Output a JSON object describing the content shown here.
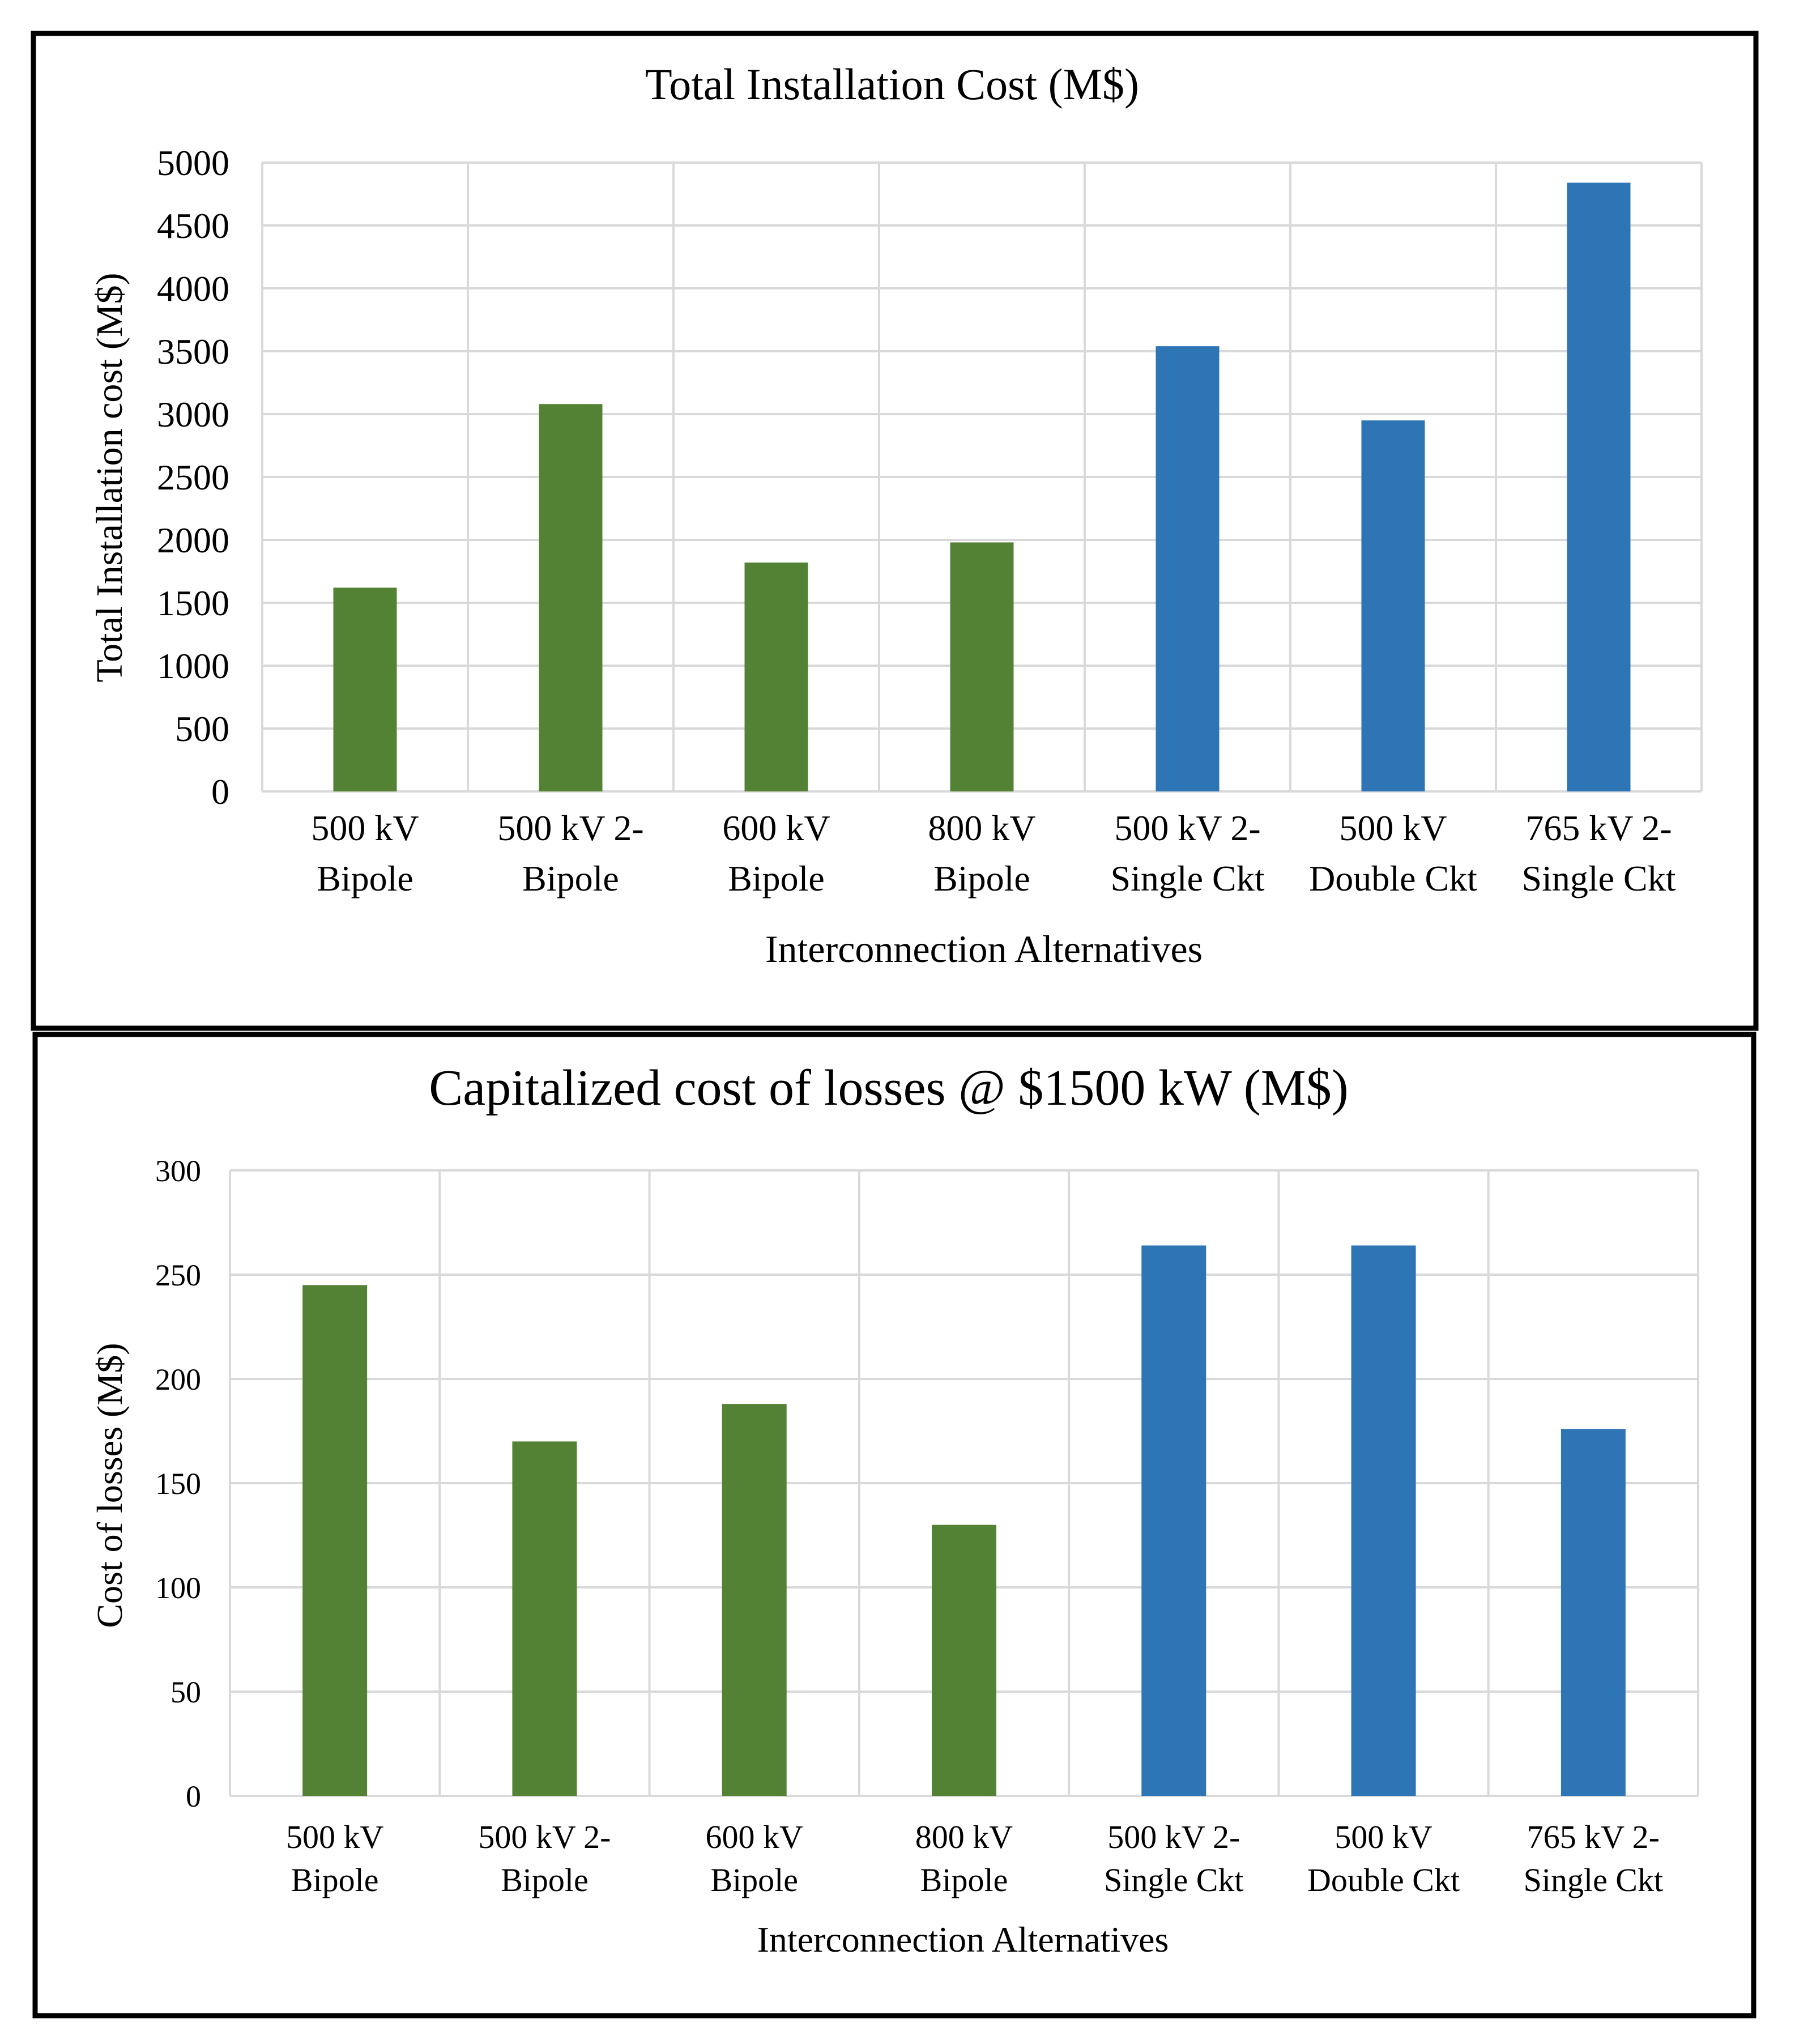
{
  "chart_data": [
    {
      "type": "bar",
      "title": "Total Installation Cost (M$)",
      "xlabel": "Interconnection Alternatives",
      "ylabel": "Total Installation cost (M$)",
      "ylim": [
        0,
        5000
      ],
      "yticks": [
        0,
        500,
        1000,
        1500,
        2000,
        2500,
        3000,
        3500,
        4000,
        4500,
        5000
      ],
      "grid": true,
      "categories": [
        [
          "500 kV",
          "Bipole"
        ],
        [
          "500 kV 2-",
          "Bipole"
        ],
        [
          "600 kV",
          "Bipole"
        ],
        [
          "800 kV",
          "Bipole"
        ],
        [
          "500 kV 2-",
          "Single Ckt"
        ],
        [
          "500 kV",
          "Double Ckt"
        ],
        [
          "765 kV 2-",
          "Single Ckt"
        ]
      ],
      "values": [
        1620,
        3080,
        1820,
        1980,
        3540,
        2950,
        4840
      ],
      "bar_colors": [
        "#548235",
        "#548235",
        "#548235",
        "#548235",
        "#2e75b6",
        "#2e75b6",
        "#2e75b6"
      ]
    },
    {
      "type": "bar",
      "title": "Capitalized cost of losses @ $1500 kW (M$)",
      "xlabel": "Interconnection Alternatives",
      "ylabel": "Cost of losses (M$)",
      "ylim": [
        0,
        300
      ],
      "yticks": [
        0,
        50,
        100,
        150,
        200,
        250,
        300
      ],
      "grid": true,
      "categories": [
        [
          "500 kV",
          "Bipole"
        ],
        [
          "500 kV 2-",
          "Bipole"
        ],
        [
          "600 kV",
          "Bipole"
        ],
        [
          "800 kV",
          "Bipole"
        ],
        [
          "500 kV 2-",
          "Single Ckt"
        ],
        [
          "500 kV",
          "Double Ckt"
        ],
        [
          "765 kV 2-",
          "Single Ckt"
        ]
      ],
      "values": [
        245,
        170,
        188,
        130,
        264,
        264,
        176
      ],
      "bar_colors": [
        "#548235",
        "#548235",
        "#548235",
        "#548235",
        "#2e75b6",
        "#2e75b6",
        "#2e75b6"
      ]
    }
  ]
}
